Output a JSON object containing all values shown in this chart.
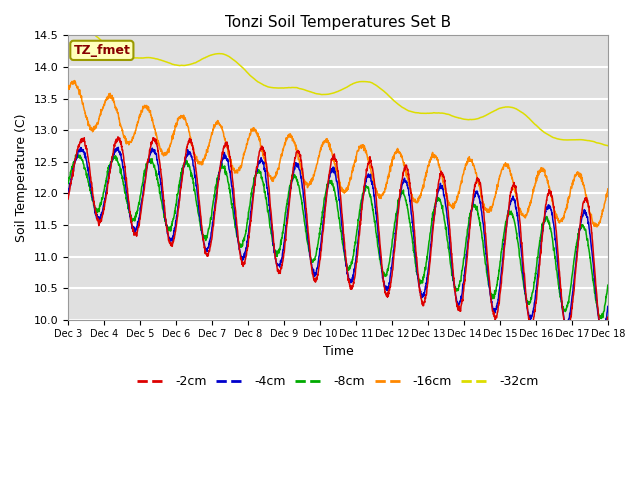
{
  "title": "Tonzi Soil Temperatures Set B",
  "xlabel": "Time",
  "ylabel": "Soil Temperature (C)",
  "ylim": [
    10.0,
    14.5
  ],
  "annotation": "TZ_fmet",
  "legend_labels": [
    "-2cm",
    "-4cm",
    "-8cm",
    "-16cm",
    "-32cm"
  ],
  "legend_colors": [
    "#dd0000",
    "#0000cc",
    "#00aa00",
    "#ff8800",
    "#dddd00"
  ],
  "background_color": "#ffffff",
  "plot_bg_color": "#e0e0e0",
  "xtick_labels": [
    "Dec 3",
    "Dec 4",
    "Dec 5",
    "Dec 6",
    "Dec 7",
    "Dec 8",
    "Dec 9",
    "Dec 10",
    "Dec 11",
    "Dec 12",
    "Dec 13",
    "Dec 14",
    "Dec 15",
    "Dec 16",
    "Dec 17",
    "Dec 18"
  ],
  "grid_color": "#ffffff",
  "n_points": 2000
}
